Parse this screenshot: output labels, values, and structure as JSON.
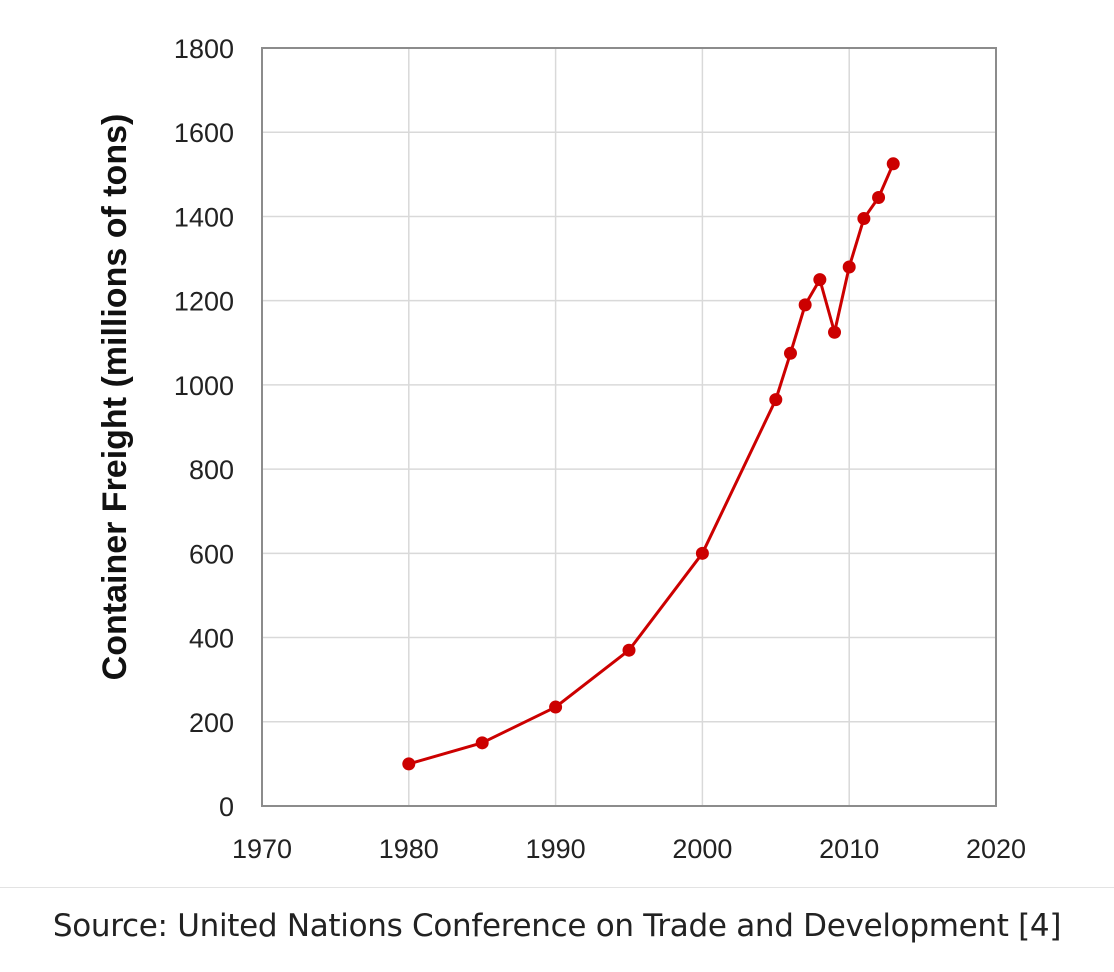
{
  "chart_data": {
    "type": "line",
    "title": "",
    "xlabel": "",
    "ylabel": "Container Freight (millions of tons)",
    "xlim": [
      1970,
      2020
    ],
    "ylim": [
      0,
      1800
    ],
    "xticks": [
      1970,
      1980,
      1990,
      2000,
      2010,
      2020
    ],
    "yticks": [
      0,
      200,
      400,
      600,
      800,
      1000,
      1200,
      1400,
      1600,
      1800
    ],
    "grid": true,
    "legend": "none",
    "series": [
      {
        "color": "#cc0000",
        "points": [
          {
            "x": 1980,
            "y": 100
          },
          {
            "x": 1985,
            "y": 150
          },
          {
            "x": 1990,
            "y": 235
          },
          {
            "x": 1995,
            "y": 370
          },
          {
            "x": 2000,
            "y": 600
          },
          {
            "x": 2005,
            "y": 965
          },
          {
            "x": 2006,
            "y": 1075
          },
          {
            "x": 2007,
            "y": 1190
          },
          {
            "x": 2008,
            "y": 1250
          },
          {
            "x": 2009,
            "y": 1125
          },
          {
            "x": 2010,
            "y": 1280
          },
          {
            "x": 2011,
            "y": 1395
          },
          {
            "x": 2012,
            "y": 1445
          },
          {
            "x": 2013,
            "y": 1525
          }
        ]
      }
    ]
  },
  "source": {
    "text": "Source:  United Nations Conference on Trade and Development [4]"
  }
}
